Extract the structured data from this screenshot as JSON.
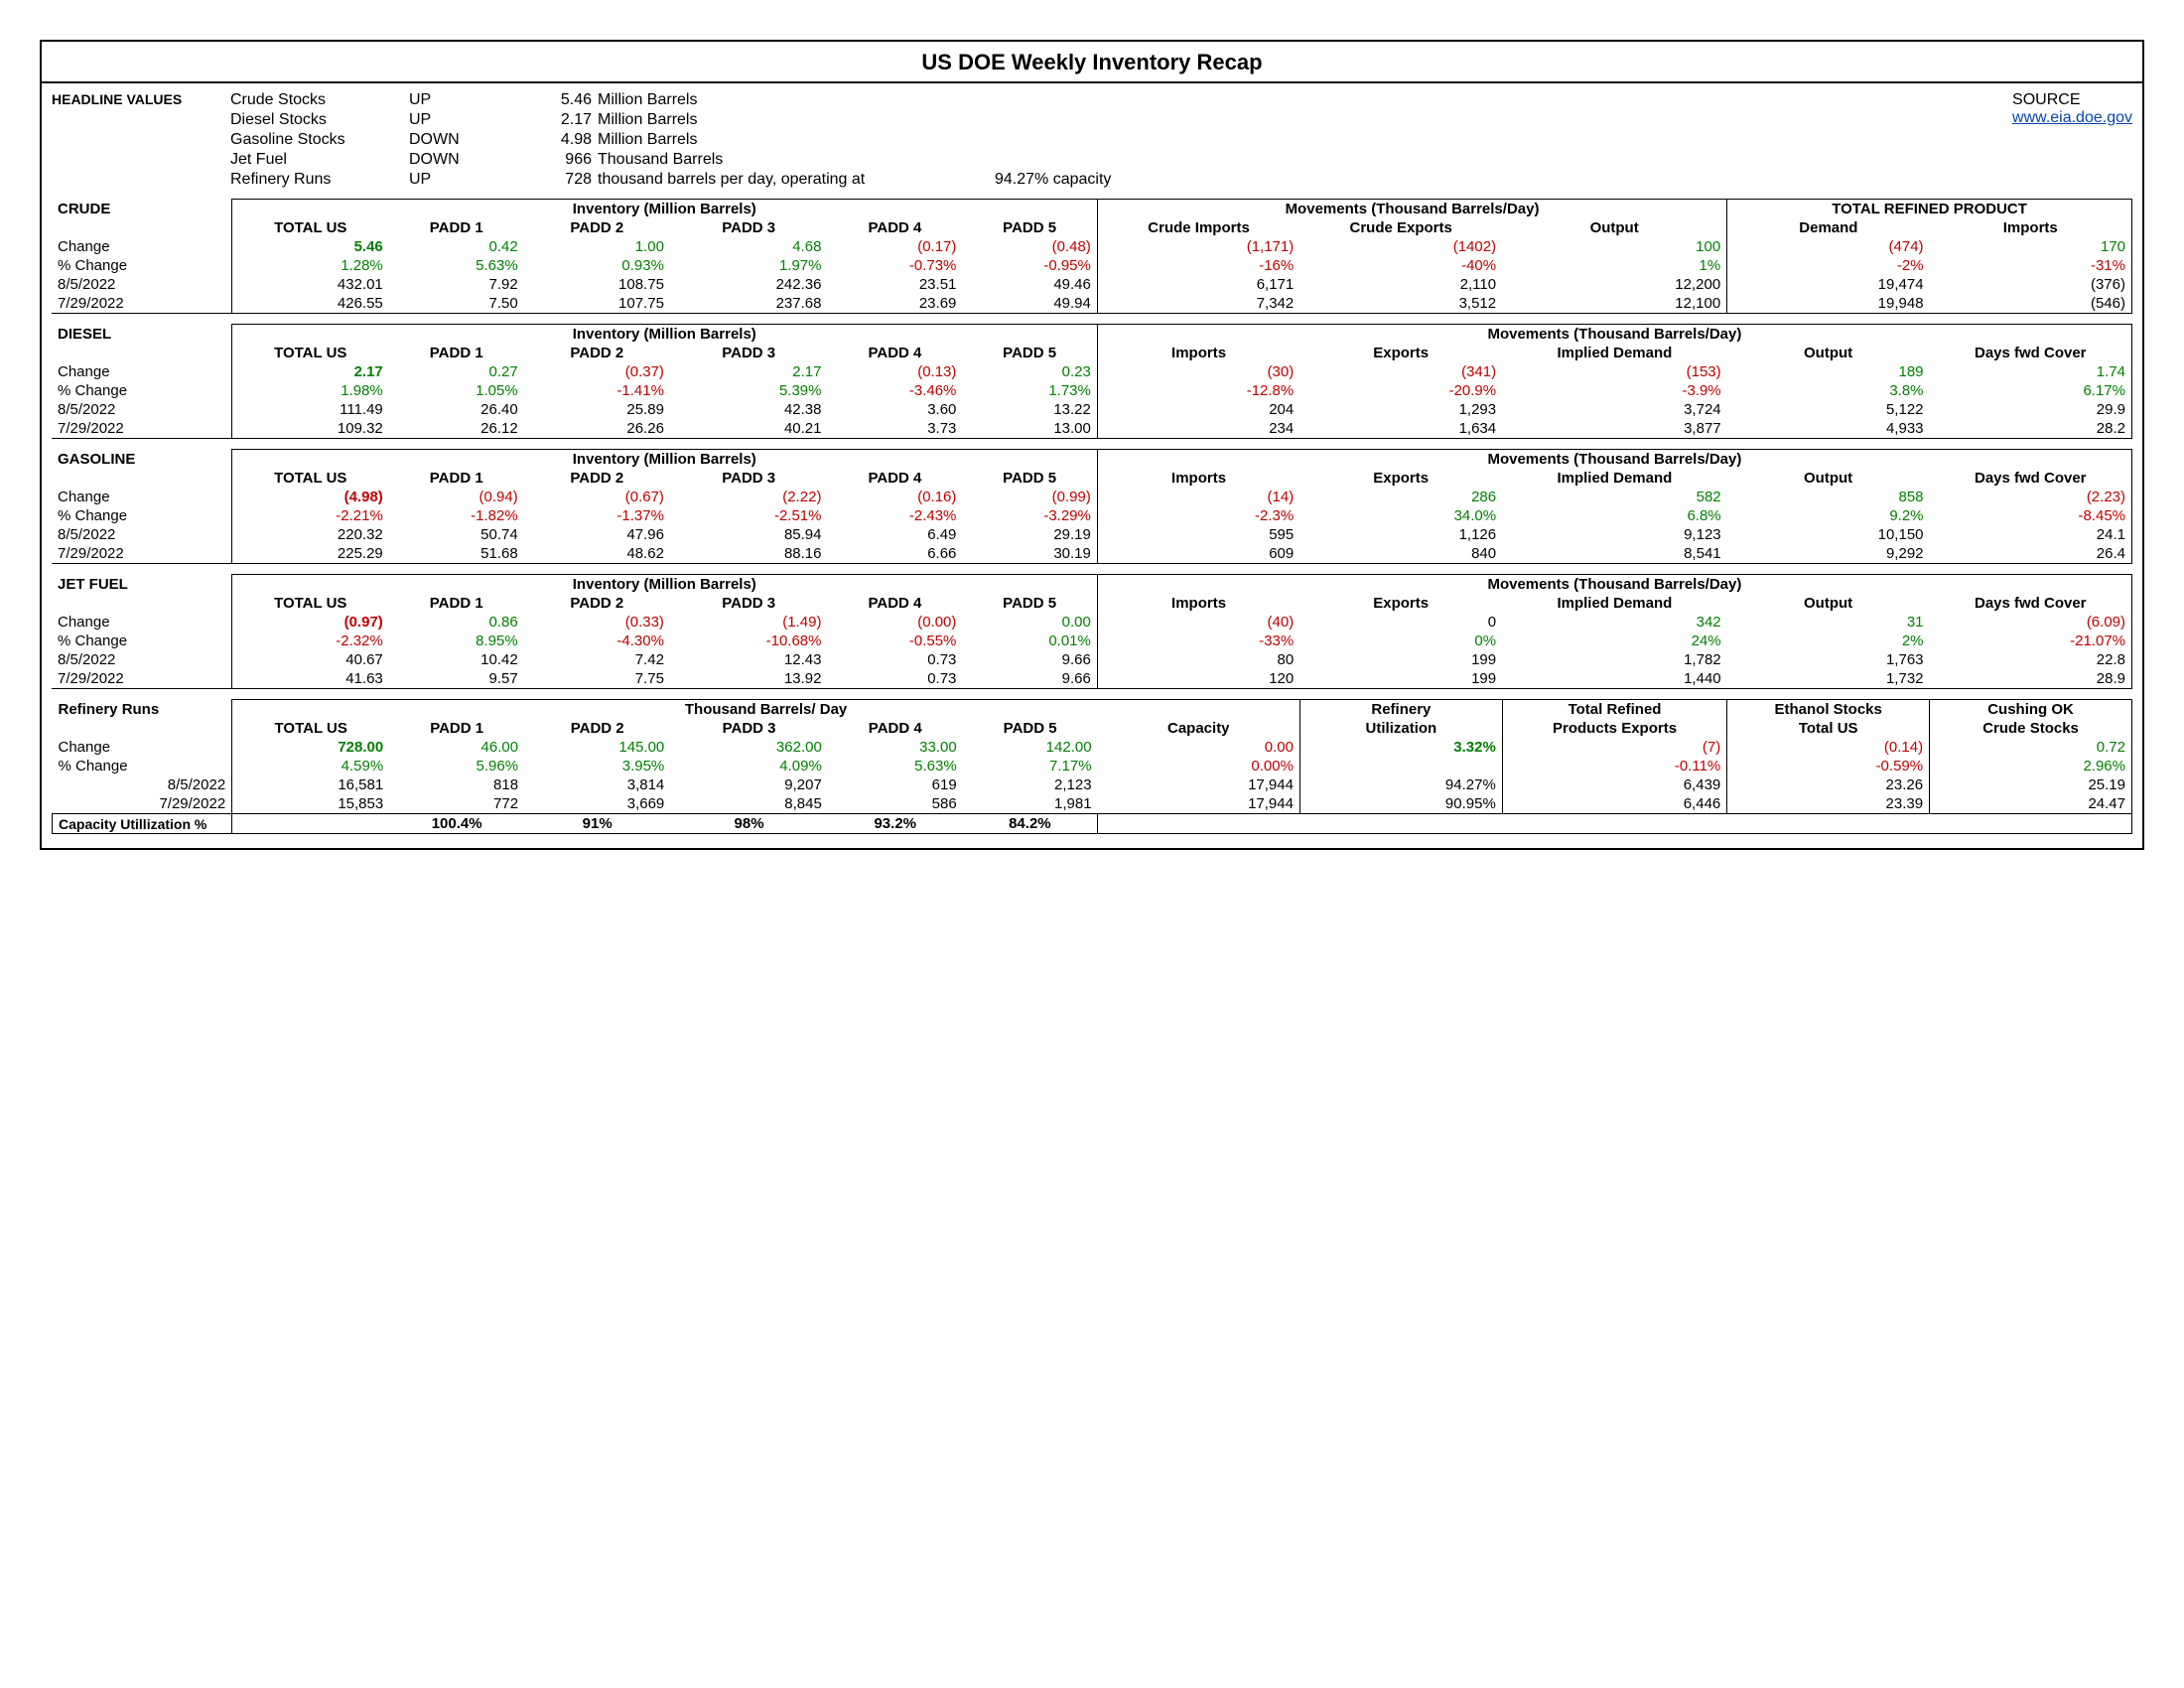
{
  "title": "US DOE Weekly Inventory Recap",
  "source_label": "SOURCE",
  "source_link": "www.eia.doe.gov",
  "headline_label": "HEADLINE VALUES",
  "headline": [
    {
      "name": "Crude Stocks",
      "dir": "UP",
      "val": "5.46",
      "unit": "Million Barrels",
      "extra": "",
      "cap": ""
    },
    {
      "name": "Diesel Stocks",
      "dir": "UP",
      "val": "2.17",
      "unit": "Million Barrels",
      "extra": "",
      "cap": ""
    },
    {
      "name": "Gasoline Stocks",
      "dir": "DOWN",
      "val": "4.98",
      "unit": "Million Barrels",
      "extra": "",
      "cap": ""
    },
    {
      "name": "Jet Fuel",
      "dir": "DOWN",
      "val": "966",
      "unit": "Thousand Barrels",
      "extra": "",
      "cap": ""
    },
    {
      "name": "Refinery Runs",
      "dir": "UP",
      "val": "728",
      "unit": "thousand barrels per day, operating at",
      "extra": "",
      "cap": "94.27% capacity"
    }
  ],
  "row_labels": {
    "change": "Change",
    "pct": "% Change",
    "d1": "8/5/2022",
    "d2": "7/29/2022"
  },
  "crude": {
    "name": "CRUDE",
    "h1": "Inventory (Million Barrels)",
    "h2": "Movements (Thousand Barrels/Day)",
    "h3": "TOTAL REFINED PRODUCT",
    "cols": [
      "TOTAL US",
      "PADD 1",
      "PADD 2",
      "PADD 3",
      "PADD 4",
      "PADD 5",
      "Crude Imports",
      "Crude Exports",
      "Output",
      "Demand",
      "Imports"
    ],
    "change": [
      {
        "v": "5.46",
        "c": "pos big"
      },
      {
        "v": "0.42",
        "c": "pos"
      },
      {
        "v": "1.00",
        "c": "pos"
      },
      {
        "v": "4.68",
        "c": "pos"
      },
      {
        "v": "(0.17)",
        "c": "neg"
      },
      {
        "v": "(0.48)",
        "c": "neg"
      },
      {
        "v": "(1,171)",
        "c": "neg"
      },
      {
        "v": "(1402)",
        "c": "neg"
      },
      {
        "v": "100",
        "c": "pos"
      },
      {
        "v": "(474)",
        "c": "neg"
      },
      {
        "v": "170",
        "c": "pos"
      }
    ],
    "pct": [
      {
        "v": "1.28%",
        "c": "pos"
      },
      {
        "v": "5.63%",
        "c": "pos"
      },
      {
        "v": "0.93%",
        "c": "pos"
      },
      {
        "v": "1.97%",
        "c": "pos"
      },
      {
        "v": "-0.73%",
        "c": "neg"
      },
      {
        "v": "-0.95%",
        "c": "neg"
      },
      {
        "v": "-16%",
        "c": "neg"
      },
      {
        "v": "-40%",
        "c": "neg"
      },
      {
        "v": "1%",
        "c": "pos"
      },
      {
        "v": "-2%",
        "c": "neg"
      },
      {
        "v": "-31%",
        "c": "neg"
      }
    ],
    "d1": [
      "432.01",
      "7.92",
      "108.75",
      "242.36",
      "23.51",
      "49.46",
      "6,171",
      "2,110",
      "12,200",
      "19,474",
      "(376)"
    ],
    "d2": [
      "426.55",
      "7.50",
      "107.75",
      "237.68",
      "23.69",
      "49.94",
      "7,342",
      "3,512",
      "12,100",
      "19,948",
      "(546)"
    ]
  },
  "diesel": {
    "name": "DIESEL",
    "h1": "Inventory (Million Barrels)",
    "h2": "Movements (Thousand Barrels/Day)",
    "cols": [
      "TOTAL US",
      "PADD 1",
      "PADD 2",
      "PADD 3",
      "PADD 4",
      "PADD 5",
      "Imports",
      "Exports",
      "Implied Demand",
      "Output",
      "Days fwd Cover"
    ],
    "change": [
      {
        "v": "2.17",
        "c": "pos big"
      },
      {
        "v": "0.27",
        "c": "pos"
      },
      {
        "v": "(0.37)",
        "c": "neg"
      },
      {
        "v": "2.17",
        "c": "pos"
      },
      {
        "v": "(0.13)",
        "c": "neg"
      },
      {
        "v": "0.23",
        "c": "pos"
      },
      {
        "v": "(30)",
        "c": "neg"
      },
      {
        "v": "(341)",
        "c": "neg"
      },
      {
        "v": "(153)",
        "c": "neg"
      },
      {
        "v": "189",
        "c": "pos"
      },
      {
        "v": "1.74",
        "c": "pos"
      }
    ],
    "pct": [
      {
        "v": "1.98%",
        "c": "pos"
      },
      {
        "v": "1.05%",
        "c": "pos"
      },
      {
        "v": "-1.41%",
        "c": "neg"
      },
      {
        "v": "5.39%",
        "c": "pos"
      },
      {
        "v": "-3.46%",
        "c": "neg"
      },
      {
        "v": "1.73%",
        "c": "pos"
      },
      {
        "v": "-12.8%",
        "c": "neg"
      },
      {
        "v": "-20.9%",
        "c": "neg"
      },
      {
        "v": "-3.9%",
        "c": "neg"
      },
      {
        "v": "3.8%",
        "c": "pos"
      },
      {
        "v": "6.17%",
        "c": "pos"
      }
    ],
    "d1": [
      "111.49",
      "26.40",
      "25.89",
      "42.38",
      "3.60",
      "13.22",
      "204",
      "1,293",
      "3,724",
      "5,122",
      "29.9"
    ],
    "d2": [
      "109.32",
      "26.12",
      "26.26",
      "40.21",
      "3.73",
      "13.00",
      "234",
      "1,634",
      "3,877",
      "4,933",
      "28.2"
    ]
  },
  "gasoline": {
    "name": "GASOLINE",
    "h1": "Inventory (Million Barrels)",
    "h2": "Movements (Thousand Barrels/Day)",
    "cols": [
      "TOTAL US",
      "PADD 1",
      "PADD 2",
      "PADD 3",
      "PADD 4",
      "PADD 5",
      "Imports",
      "Exports",
      "Implied Demand",
      "Output",
      "Days fwd Cover"
    ],
    "change": [
      {
        "v": "(4.98)",
        "c": "neg big"
      },
      {
        "v": "(0.94)",
        "c": "neg"
      },
      {
        "v": "(0.67)",
        "c": "neg"
      },
      {
        "v": "(2.22)",
        "c": "neg"
      },
      {
        "v": "(0.16)",
        "c": "neg"
      },
      {
        "v": "(0.99)",
        "c": "neg"
      },
      {
        "v": "(14)",
        "c": "neg"
      },
      {
        "v": "286",
        "c": "pos"
      },
      {
        "v": "582",
        "c": "pos"
      },
      {
        "v": "858",
        "c": "pos"
      },
      {
        "v": "(2.23)",
        "c": "neg"
      }
    ],
    "pct": [
      {
        "v": "-2.21%",
        "c": "neg"
      },
      {
        "v": "-1.82%",
        "c": "neg"
      },
      {
        "v": "-1.37%",
        "c": "neg"
      },
      {
        "v": "-2.51%",
        "c": "neg"
      },
      {
        "v": "-2.43%",
        "c": "neg"
      },
      {
        "v": "-3.29%",
        "c": "neg"
      },
      {
        "v": "-2.3%",
        "c": "neg"
      },
      {
        "v": "34.0%",
        "c": "pos"
      },
      {
        "v": "6.8%",
        "c": "pos"
      },
      {
        "v": "9.2%",
        "c": "pos"
      },
      {
        "v": "-8.45%",
        "c": "neg"
      }
    ],
    "d1": [
      "220.32",
      "50.74",
      "47.96",
      "85.94",
      "6.49",
      "29.19",
      "595",
      "1,126",
      "9,123",
      "10,150",
      "24.1"
    ],
    "d2": [
      "225.29",
      "51.68",
      "48.62",
      "88.16",
      "6.66",
      "30.19",
      "609",
      "840",
      "8,541",
      "9,292",
      "26.4"
    ]
  },
  "jetfuel": {
    "name": "JET FUEL",
    "h1": "Inventory (Million Barrels)",
    "h2": "Movements (Thousand Barrels/Day)",
    "cols": [
      "TOTAL US",
      "PADD 1",
      "PADD 2",
      "PADD 3",
      "PADD 4",
      "PADD 5",
      "Imports",
      "Exports",
      "Implied Demand",
      "Output",
      "Days fwd Cover"
    ],
    "change": [
      {
        "v": "(0.97)",
        "c": "neg big"
      },
      {
        "v": "0.86",
        "c": "pos"
      },
      {
        "v": "(0.33)",
        "c": "neg"
      },
      {
        "v": "(1.49)",
        "c": "neg"
      },
      {
        "v": "(0.00)",
        "c": "neg"
      },
      {
        "v": "0.00",
        "c": "pos"
      },
      {
        "v": "(40)",
        "c": "neg"
      },
      {
        "v": "0",
        "c": ""
      },
      {
        "v": "342",
        "c": "pos"
      },
      {
        "v": "31",
        "c": "pos"
      },
      {
        "v": "(6.09)",
        "c": "neg"
      }
    ],
    "pct": [
      {
        "v": "-2.32%",
        "c": "neg"
      },
      {
        "v": "8.95%",
        "c": "pos"
      },
      {
        "v": "-4.30%",
        "c": "neg"
      },
      {
        "v": "-10.68%",
        "c": "neg"
      },
      {
        "v": "-0.55%",
        "c": "neg"
      },
      {
        "v": "0.01%",
        "c": "pos"
      },
      {
        "v": "-33%",
        "c": "neg"
      },
      {
        "v": "0%",
        "c": "pos"
      },
      {
        "v": "24%",
        "c": "pos"
      },
      {
        "v": "2%",
        "c": "pos"
      },
      {
        "v": "-21.07%",
        "c": "neg"
      }
    ],
    "d1": [
      "40.67",
      "10.42",
      "7.42",
      "12.43",
      "0.73",
      "9.66",
      "80",
      "199",
      "1,782",
      "1,763",
      "22.8"
    ],
    "d2": [
      "41.63",
      "9.57",
      "7.75",
      "13.92",
      "0.73",
      "9.66",
      "120",
      "199",
      "1,440",
      "1,732",
      "28.9"
    ]
  },
  "refinery": {
    "name": "Refinery Runs",
    "h1": "Thousand Barrels/ Day",
    "extra_h": [
      "Refinery",
      "Total Refined",
      "Ethanol Stocks",
      "Cushing OK"
    ],
    "cols": [
      "TOTAL US",
      "PADD 1",
      "PADD 2",
      "PADD 3",
      "PADD 4",
      "PADD 5",
      "Capacity",
      "Utilization",
      "Products Exports",
      "Total US",
      "Crude Stocks"
    ],
    "change": [
      {
        "v": "728.00",
        "c": "pos big"
      },
      {
        "v": "46.00",
        "c": "pos"
      },
      {
        "v": "145.00",
        "c": "pos"
      },
      {
        "v": "362.00",
        "c": "pos"
      },
      {
        "v": "33.00",
        "c": "pos"
      },
      {
        "v": "142.00",
        "c": "pos"
      },
      {
        "v": "0.00",
        "c": "neg"
      },
      {
        "v": "3.32%",
        "c": "pos big"
      },
      {
        "v": "(7)",
        "c": "neg"
      },
      {
        "v": "(0.14)",
        "c": "neg"
      },
      {
        "v": "0.72",
        "c": "pos"
      }
    ],
    "pct": [
      {
        "v": "4.59%",
        "c": "pos"
      },
      {
        "v": "5.96%",
        "c": "pos"
      },
      {
        "v": "3.95%",
        "c": "pos"
      },
      {
        "v": "4.09%",
        "c": "pos"
      },
      {
        "v": "5.63%",
        "c": "pos"
      },
      {
        "v": "7.17%",
        "c": "pos"
      },
      {
        "v": "0.00%",
        "c": "neg"
      },
      {
        "v": "",
        "c": ""
      },
      {
        "v": "-0.11%",
        "c": "neg"
      },
      {
        "v": "-0.59%",
        "c": "neg"
      },
      {
        "v": "2.96%",
        "c": "pos"
      }
    ],
    "d1": [
      "16,581",
      "818",
      "3,814",
      "9,207",
      "619",
      "2,123",
      "17,944",
      "94.27%",
      "6,439",
      "23.26",
      "25.19"
    ],
    "d2": [
      "15,853",
      "772",
      "3,669",
      "8,845",
      "586",
      "1,981",
      "17,944",
      "90.95%",
      "6,446",
      "23.39",
      "24.47"
    ],
    "caputil_label": "Capacity Utillization %",
    "caputil": [
      "",
      "100.4%",
      "91%",
      "98%",
      "93.2%",
      "84.2%",
      "",
      "",
      "",
      "",
      ""
    ]
  }
}
